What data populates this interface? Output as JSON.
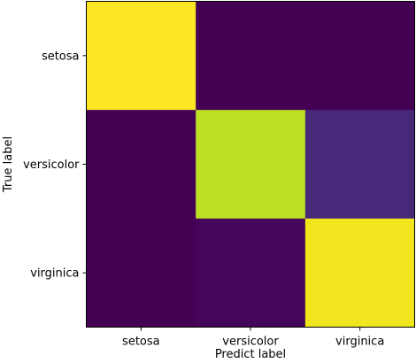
{
  "chart_data": {
    "type": "heatmap",
    "title": "",
    "xlabel": "Predict label",
    "ylabel": "True label",
    "x_categories": [
      "setosa",
      "versicolor",
      "virginica"
    ],
    "y_categories": [
      "setosa",
      "versicolor",
      "virginica"
    ],
    "values": [
      [
        1.0,
        0.0,
        0.0
      ],
      [
        0.0,
        0.92,
        0.08
      ],
      [
        0.0,
        0.02,
        0.98
      ]
    ],
    "colormap": "viridis",
    "value_range": [
      0,
      1
    ],
    "cell_colors": [
      [
        "#fde725",
        "#440154",
        "#440154"
      ],
      [
        "#440154",
        "#bddf26",
        "#482878"
      ],
      [
        "#440154",
        "#450559",
        "#f1e51d"
      ]
    ],
    "grid": false,
    "legend": "none"
  }
}
